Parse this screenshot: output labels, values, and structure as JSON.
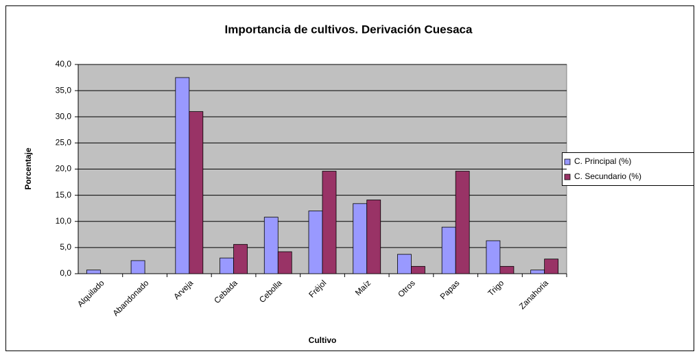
{
  "chart_data": {
    "type": "bar",
    "title": "Importancia de cultivos. Derivación Cuesaca",
    "x_label": "Cultivo",
    "y_label": "Porcentaje",
    "categories": [
      "Alquilado",
      "Abandonado",
      "Arveja",
      "Cebada",
      "Cebolla",
      "Fréjol",
      "Maíz",
      "Otros",
      "Papas",
      "Trigo",
      "Zanahoria"
    ],
    "series": [
      {
        "name": "C. Principal (%)",
        "color": "#9999ff",
        "values": [
          0.7,
          2.5,
          37.5,
          3.0,
          10.8,
          12.0,
          13.4,
          3.7,
          8.9,
          6.3,
          0.7
        ]
      },
      {
        "name": "C. Secundario (%)",
        "color": "#993366",
        "values": [
          0,
          0,
          31.0,
          5.6,
          4.2,
          19.6,
          14.1,
          1.4,
          19.6,
          1.4,
          2.8
        ]
      }
    ],
    "ylim": [
      0,
      40
    ],
    "yticks": [
      {
        "value": 0,
        "label": "0,0"
      },
      {
        "value": 5,
        "label": "5,0"
      },
      {
        "value": 10,
        "label": "10,0"
      },
      {
        "value": 15,
        "label": "15,0"
      },
      {
        "value": 20,
        "label": "20,0"
      },
      {
        "value": 25,
        "label": "25,0"
      },
      {
        "value": 30,
        "label": "30,0"
      },
      {
        "value": 35,
        "label": "35,0"
      },
      {
        "value": 40,
        "label": "40,0"
      }
    ],
    "grid": true,
    "legend": "right"
  }
}
